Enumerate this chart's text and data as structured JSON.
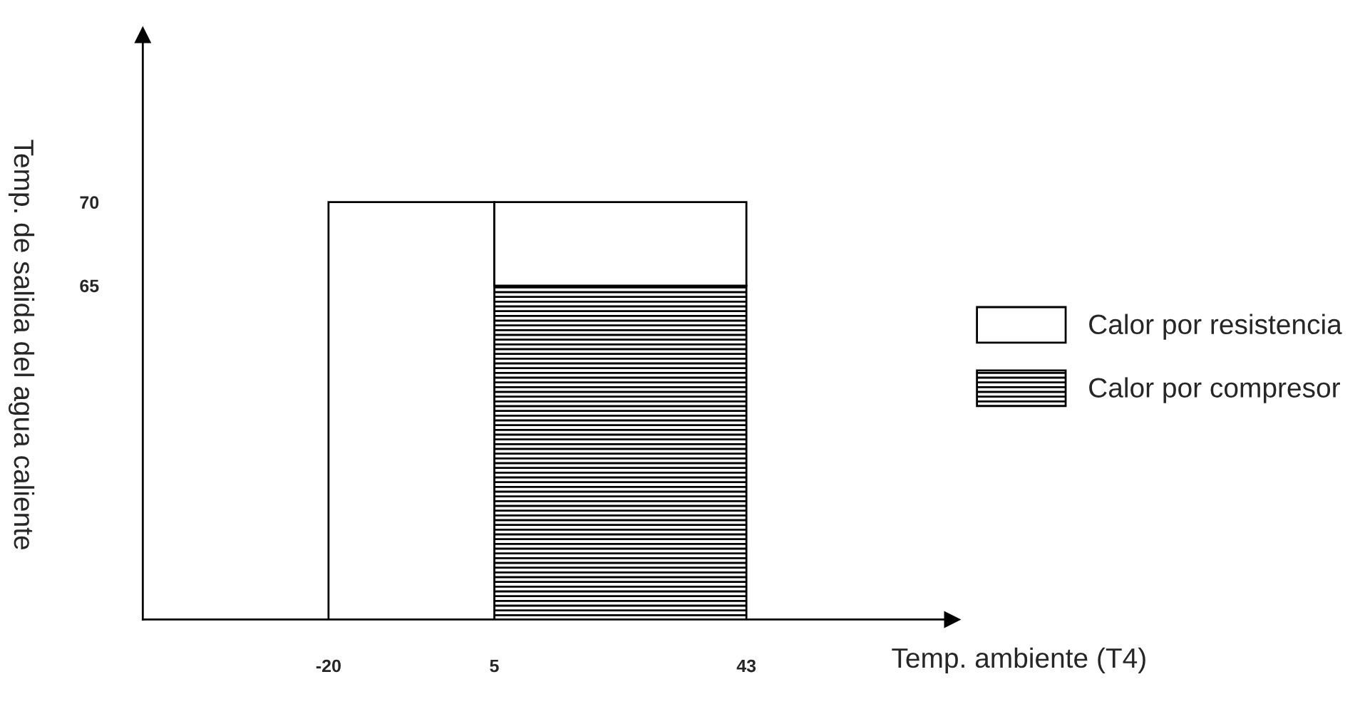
{
  "chart_data": {
    "type": "histogram",
    "xlabel": "Temp. ambiente (T4)",
    "ylabel": "Temp. de salida del agua caliente",
    "bins": [
      -20,
      5,
      43
    ],
    "series": [
      {
        "name": "Calor por compresor",
        "color": "#000000",
        "values": [
          null,
          20
        ],
        "base": [
          null,
          45
        ]
      },
      {
        "name": "Calor por resistencia",
        "color": "#ffffff",
        "values": [
          25,
          5
        ],
        "base": [
          45,
          65
        ]
      }
    ],
    "xlim": [
      -48,
      74
    ],
    "xticks": [
      -20,
      5,
      43
    ],
    "ylim": [
      45,
      80
    ],
    "yticks": [
      65,
      70
    ],
    "grid": false,
    "legend": "right"
  }
}
